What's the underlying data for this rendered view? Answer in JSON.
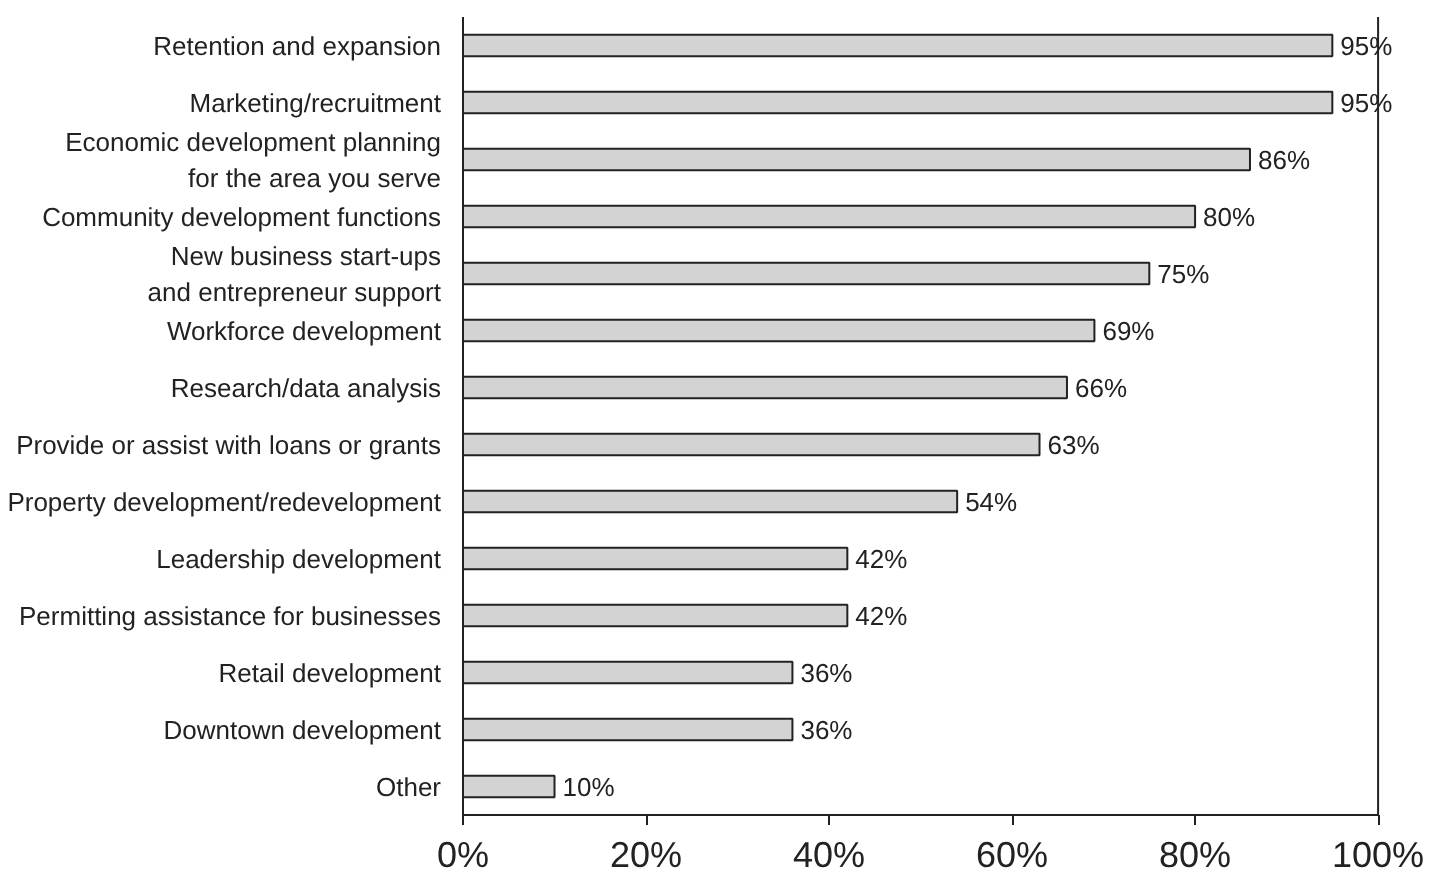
{
  "chart_data": {
    "type": "bar",
    "orientation": "horizontal",
    "categories": [
      "Retention and expansion",
      "Marketing/recruitment",
      "Economic development planning\nfor the area you serve",
      "Community development functions",
      "New business start-ups\nand entrepreneur support",
      "Workforce development",
      "Research/data analysis",
      "Provide or assist with loans or grants",
      "Property development/redevelopment",
      "Leadership development",
      "Permitting assistance for businesses",
      "Retail development",
      "Downtown development",
      "Other"
    ],
    "values": [
      95,
      95,
      86,
      80,
      75,
      69,
      66,
      63,
      54,
      42,
      42,
      36,
      36,
      10
    ],
    "value_labels": [
      "95%",
      "95%",
      "86%",
      "80%",
      "75%",
      "69%",
      "66%",
      "63%",
      "54%",
      "42%",
      "42%",
      "36%",
      "36%",
      "10%"
    ],
    "color": "#d3d3d3",
    "xlim": [
      0,
      100
    ],
    "xticks": [
      {
        "value": 0,
        "label": "0%"
      },
      {
        "value": 20,
        "label": "20%"
      },
      {
        "value": 40,
        "label": "40%"
      },
      {
        "value": 60,
        "label": "60%"
      },
      {
        "value": 80,
        "label": "80%"
      },
      {
        "value": 100,
        "label": "100%"
      }
    ],
    "grid": false
  }
}
